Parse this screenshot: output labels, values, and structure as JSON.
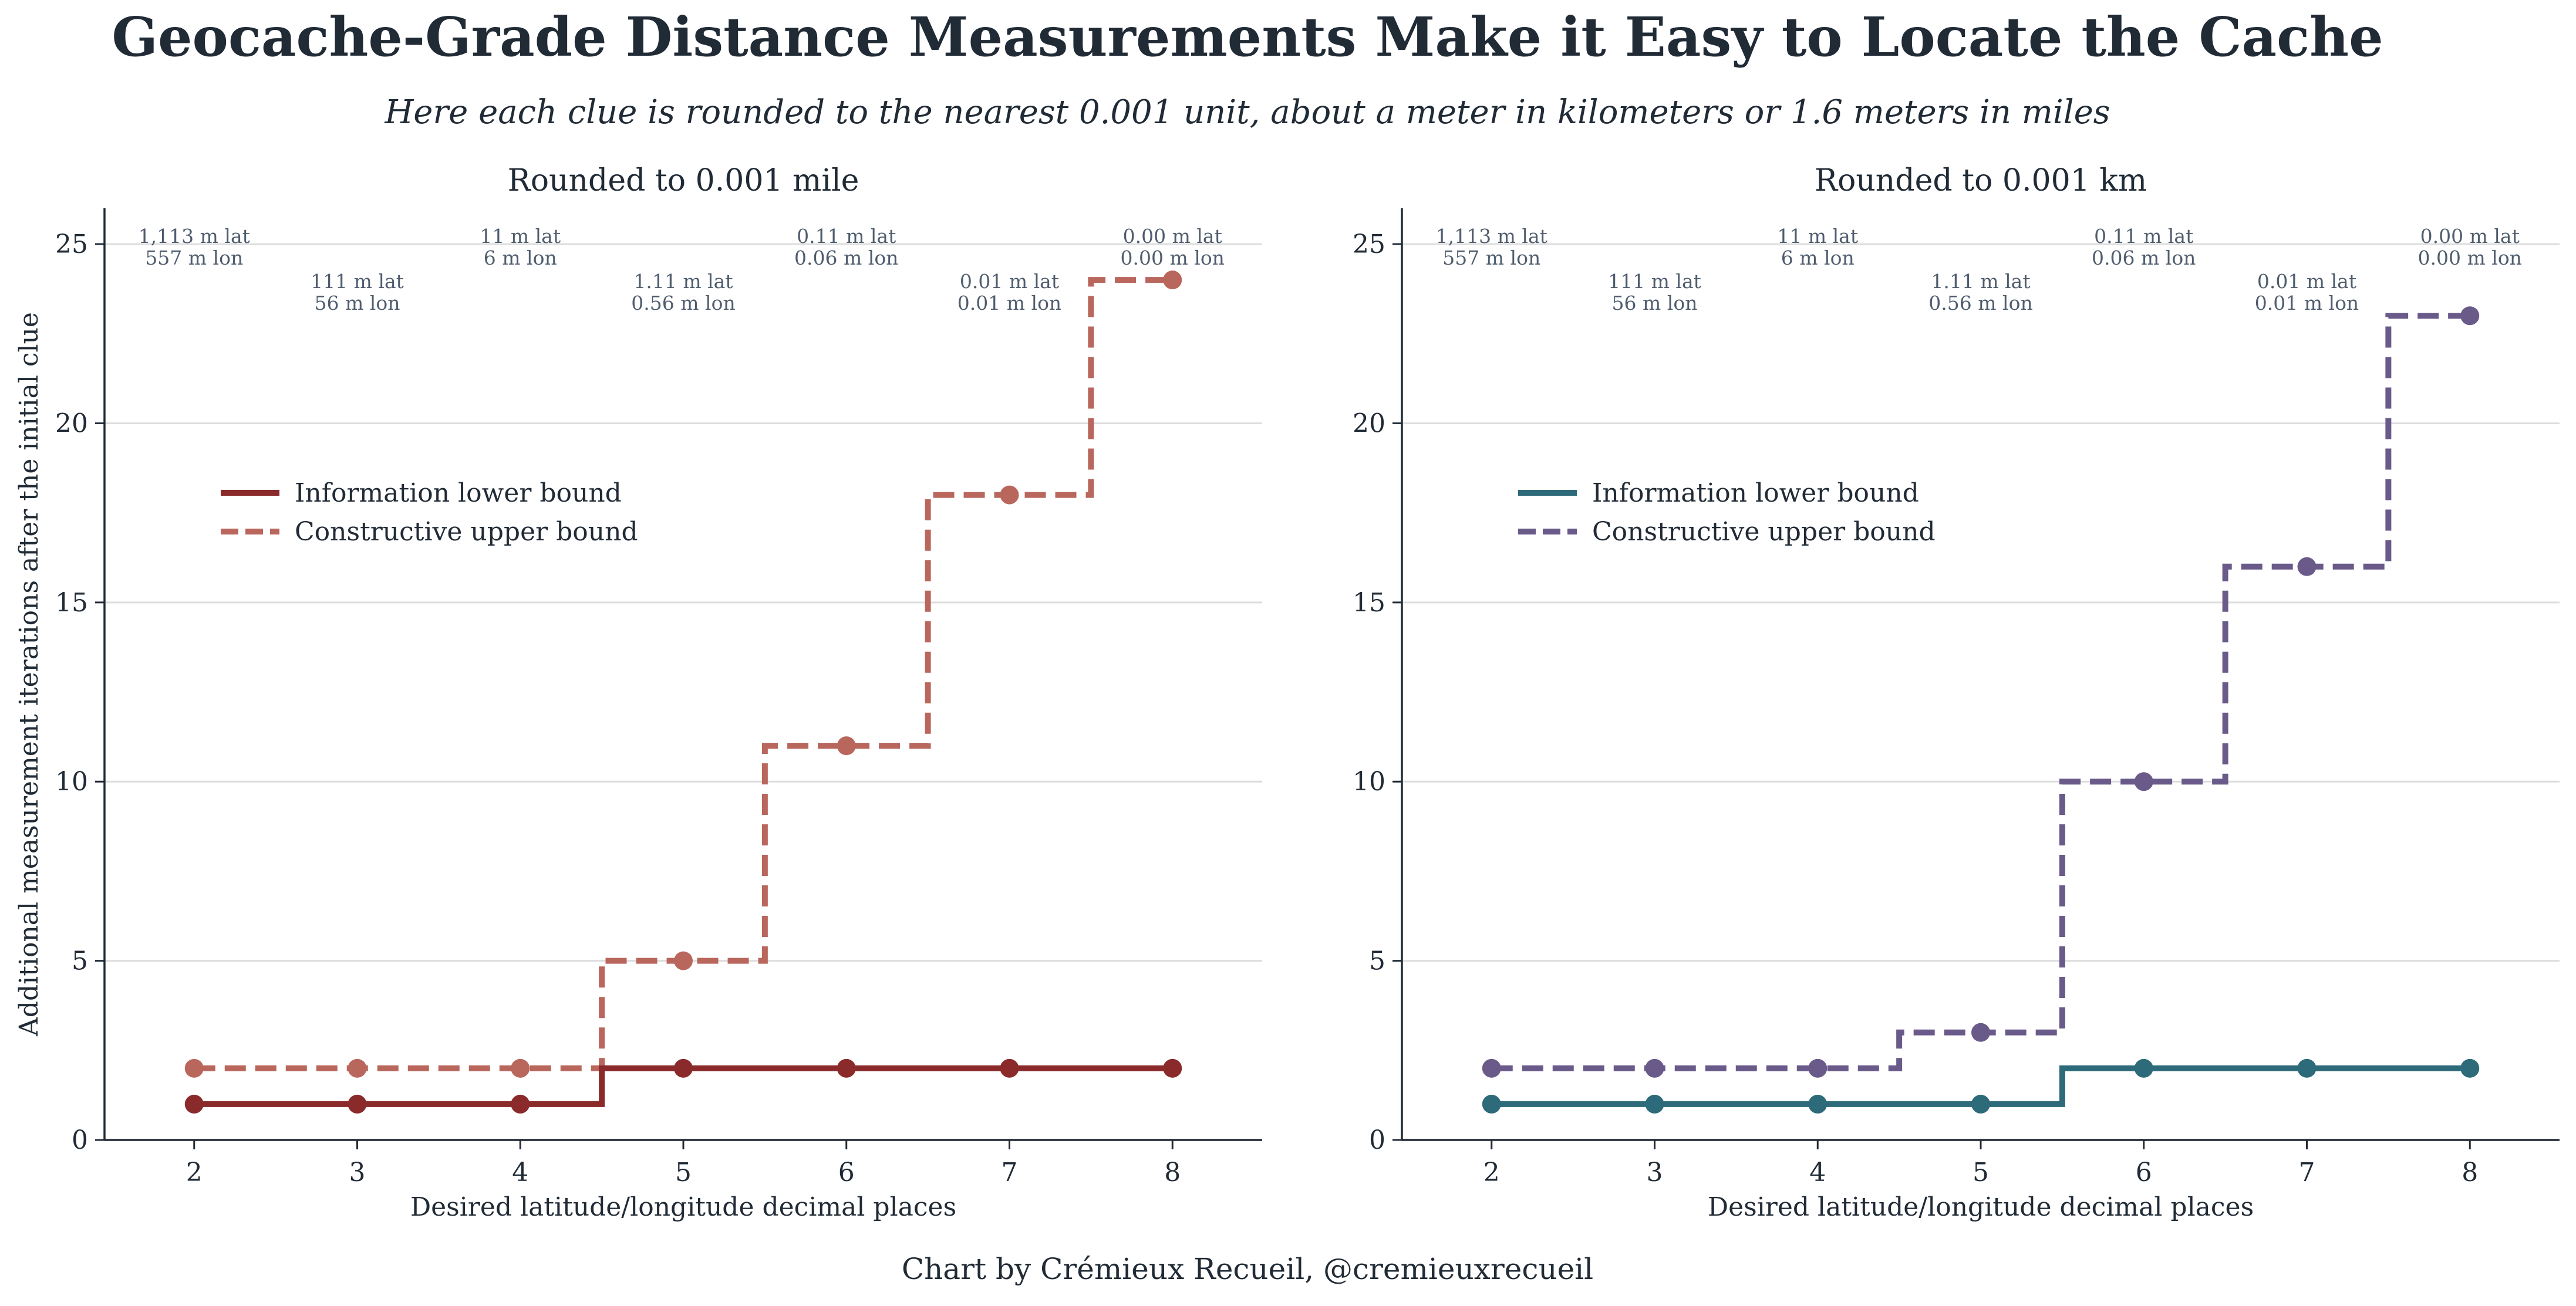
{
  "title": "Geocache-Grade Distance Measurements Make it Easy to Locate the Cache",
  "subtitle": "Here each clue is rounded to the nearest 0.001 unit, about a meter in kilometers or 1.6 meters in miles",
  "credit": "Chart by Crémieux Recueil, @cremieuxrecueil",
  "colors": {
    "text": "#212b36",
    "annotation": "#4f5d6e",
    "grid": "#dddddd",
    "mile_lower": "#8b2a2a",
    "mile_upper": "#b9675d",
    "km_lower": "#2e6b7a",
    "km_upper": "#6a5a8a"
  },
  "chart_data": [
    {
      "type": "line",
      "panel": "left",
      "title": "Rounded to 0.001 mile",
      "xlabel": "Desired latitude/longitude decimal places",
      "ylabel": "Additional measurement iterations after the initial clue",
      "x": [
        2,
        3,
        4,
        5,
        6,
        7,
        8
      ],
      "xlim": [
        1.45,
        8.55
      ],
      "ylim": [
        0,
        26
      ],
      "yticks": [
        0,
        5,
        10,
        15,
        20,
        25
      ],
      "grid": "horizontal",
      "legend_position": "upper-left",
      "series": [
        {
          "name": "Information lower bound",
          "style": "solid",
          "step": "mid",
          "color": "#8b2a2a",
          "values": [
            1,
            1,
            1,
            2,
            2,
            2,
            2
          ]
        },
        {
          "name": "Constructive upper bound",
          "style": "dashed",
          "step": "mid",
          "color": "#b9675d",
          "values": [
            2,
            2,
            2,
            5,
            11,
            18,
            24
          ]
        }
      ],
      "annotations": [
        {
          "x": 2,
          "lat": "1,113 m lat",
          "lon": "557 m lon",
          "row": "upper"
        },
        {
          "x": 3,
          "lat": "111 m lat",
          "lon": "56 m lon",
          "row": "lower"
        },
        {
          "x": 4,
          "lat": "11 m lat",
          "lon": "6 m lon",
          "row": "upper"
        },
        {
          "x": 5,
          "lat": "1.11 m lat",
          "lon": "0.56 m lon",
          "row": "lower"
        },
        {
          "x": 6,
          "lat": "0.11 m lat",
          "lon": "0.06 m lon",
          "row": "upper"
        },
        {
          "x": 7,
          "lat": "0.01 m lat",
          "lon": "0.01 m lon",
          "row": "lower"
        },
        {
          "x": 8,
          "lat": "0.00 m lat",
          "lon": "0.00 m lon",
          "row": "upper"
        }
      ]
    },
    {
      "type": "line",
      "panel": "right",
      "title": "Rounded to 0.001 km",
      "xlabel": "Desired latitude/longitude decimal places",
      "ylabel": "",
      "x": [
        2,
        3,
        4,
        5,
        6,
        7,
        8
      ],
      "xlim": [
        1.45,
        8.55
      ],
      "ylim": [
        0,
        26
      ],
      "yticks": [
        0,
        5,
        10,
        15,
        20,
        25
      ],
      "grid": "horizontal",
      "legend_position": "upper-left",
      "series": [
        {
          "name": "Information lower bound",
          "style": "solid",
          "step": "mid",
          "color": "#2e6b7a",
          "values": [
            1,
            1,
            1,
            1,
            2,
            2,
            2
          ]
        },
        {
          "name": "Constructive upper bound",
          "style": "dashed",
          "step": "mid",
          "color": "#6a5a8a",
          "values": [
            2,
            2,
            2,
            3,
            10,
            16,
            23
          ]
        }
      ],
      "annotations": [
        {
          "x": 2,
          "lat": "1,113 m lat",
          "lon": "557 m lon",
          "row": "upper"
        },
        {
          "x": 3,
          "lat": "111 m lat",
          "lon": "56 m lon",
          "row": "lower"
        },
        {
          "x": 4,
          "lat": "11 m lat",
          "lon": "6 m lon",
          "row": "upper"
        },
        {
          "x": 5,
          "lat": "1.11 m lat",
          "lon": "0.56 m lon",
          "row": "lower"
        },
        {
          "x": 6,
          "lat": "0.11 m lat",
          "lon": "0.06 m lon",
          "row": "upper"
        },
        {
          "x": 7,
          "lat": "0.01 m lat",
          "lon": "0.01 m lon",
          "row": "lower"
        },
        {
          "x": 8,
          "lat": "0.00 m lat",
          "lon": "0.00 m lon",
          "row": "upper"
        }
      ]
    }
  ]
}
